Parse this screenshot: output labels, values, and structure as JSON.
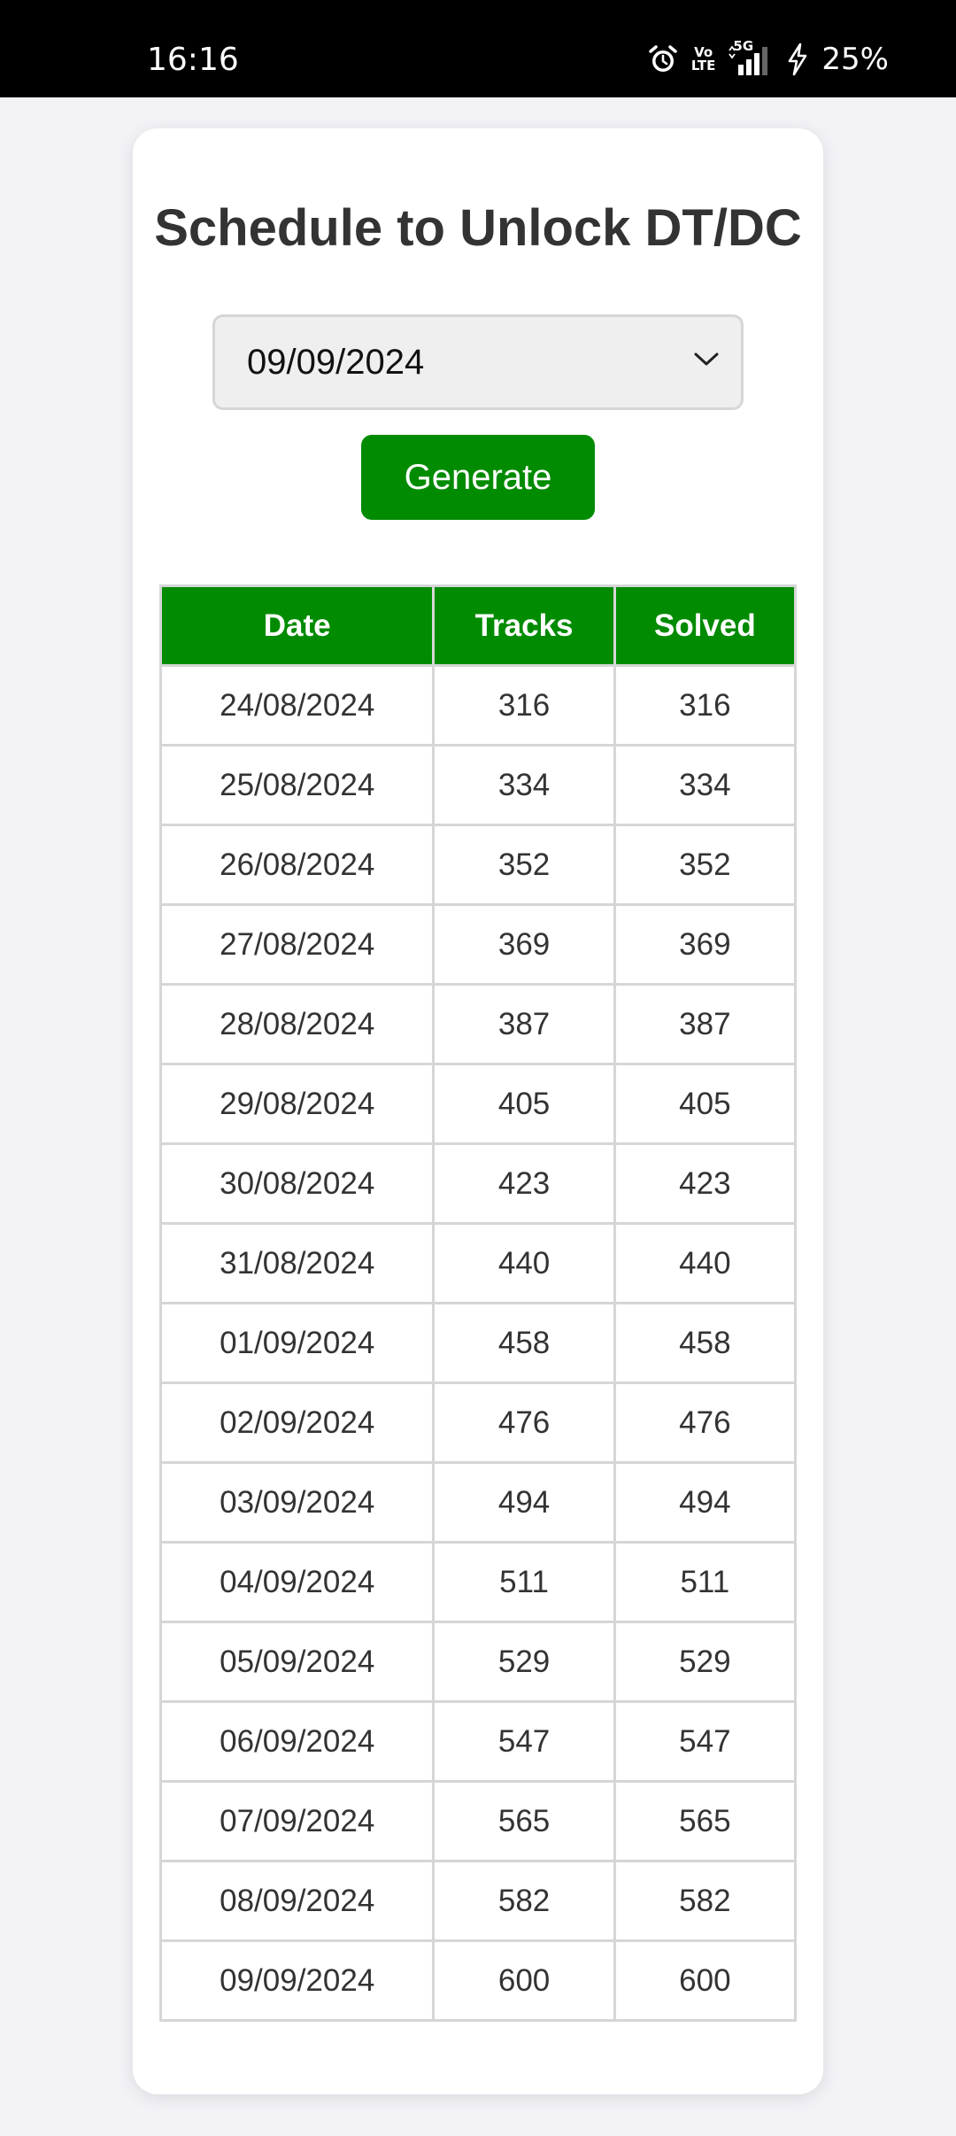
{
  "status_bar": {
    "time": "16:16",
    "volte_line1": "Vo",
    "volte_line2": "LTE",
    "network": "5G",
    "battery": "25%"
  },
  "page": {
    "title": "Schedule to Unlock DT/DC"
  },
  "date_select": {
    "selected": "09/09/2024"
  },
  "generate_button": {
    "label": "Generate"
  },
  "table": {
    "headers": [
      "Date",
      "Tracks",
      "Solved"
    ],
    "rows": [
      {
        "date": "24/08/2024",
        "tracks": "316",
        "solved": "316"
      },
      {
        "date": "25/08/2024",
        "tracks": "334",
        "solved": "334"
      },
      {
        "date": "26/08/2024",
        "tracks": "352",
        "solved": "352"
      },
      {
        "date": "27/08/2024",
        "tracks": "369",
        "solved": "369"
      },
      {
        "date": "28/08/2024",
        "tracks": "387",
        "solved": "387"
      },
      {
        "date": "29/08/2024",
        "tracks": "405",
        "solved": "405"
      },
      {
        "date": "30/08/2024",
        "tracks": "423",
        "solved": "423"
      },
      {
        "date": "31/08/2024",
        "tracks": "440",
        "solved": "440"
      },
      {
        "date": "01/09/2024",
        "tracks": "458",
        "solved": "458"
      },
      {
        "date": "02/09/2024",
        "tracks": "476",
        "solved": "476"
      },
      {
        "date": "03/09/2024",
        "tracks": "494",
        "solved": "494"
      },
      {
        "date": "04/09/2024",
        "tracks": "511",
        "solved": "511"
      },
      {
        "date": "05/09/2024",
        "tracks": "529",
        "solved": "529"
      },
      {
        "date": "06/09/2024",
        "tracks": "547",
        "solved": "547"
      },
      {
        "date": "07/09/2024",
        "tracks": "565",
        "solved": "565"
      },
      {
        "date": "08/09/2024",
        "tracks": "582",
        "solved": "582"
      },
      {
        "date": "09/09/2024",
        "tracks": "600",
        "solved": "600"
      }
    ]
  },
  "icons": {
    "alarm": "alarm-icon",
    "signal": "signal-icon",
    "charging": "charging-icon",
    "dropdown": "chevron-down-icon"
  },
  "colors": {
    "accent": "#008b00",
    "background": "#f2f2f7",
    "card": "#ffffff",
    "status_bar": "#000000"
  }
}
